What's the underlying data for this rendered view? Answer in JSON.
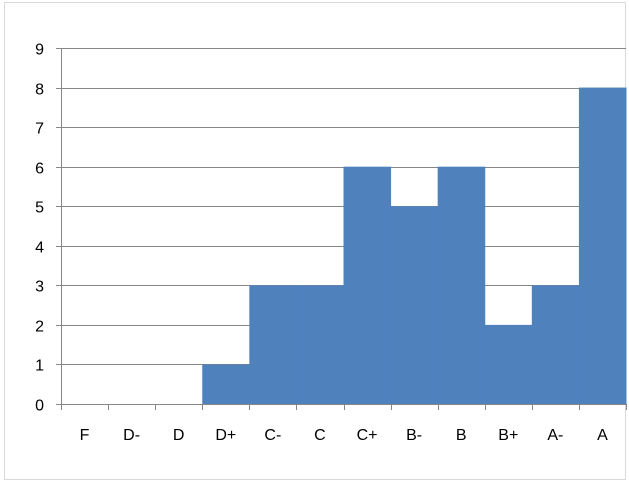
{
  "chart_data": {
    "type": "bar",
    "title": "",
    "xlabel": "",
    "ylabel": "",
    "categories": [
      "F",
      "D-",
      "D",
      "D+",
      "C-",
      "C",
      "C+",
      "B-",
      "B",
      "B+",
      "A-",
      "A"
    ],
    "values": [
      0,
      0,
      0,
      1,
      3,
      3,
      6,
      5,
      6,
      2,
      3,
      8
    ],
    "ylim": [
      0,
      9
    ],
    "yticks": [
      "0",
      "1",
      "2",
      "3",
      "4",
      "5",
      "6",
      "7",
      "8",
      "9"
    ],
    "grid": true,
    "legend": "none",
    "colors": {
      "bar": "#4f81bd",
      "grid": "#868686",
      "axis": "#868686"
    }
  }
}
